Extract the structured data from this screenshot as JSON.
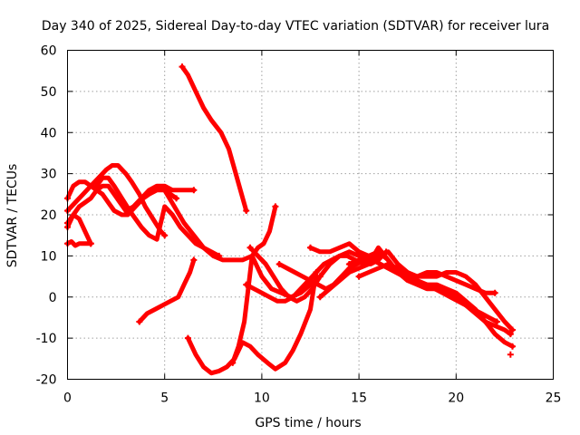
{
  "chart_data": {
    "type": "scatter",
    "title": "Day 340 of 2025, Sidereal Day-to-day VTEC variation (SDTVAR) for receiver lura",
    "xlabel": "GPS time / hours",
    "ylabel": "SDTVAR / TECUs",
    "xlim": [
      0,
      25
    ],
    "ylim": [
      -20,
      60
    ],
    "xticks": [
      0,
      5,
      10,
      15,
      20,
      25
    ],
    "yticks": [
      -20,
      -10,
      0,
      10,
      20,
      30,
      40,
      50,
      60
    ],
    "grid": true,
    "legend": "none",
    "marker": "plus",
    "color": "#ff0000",
    "series": [
      {
        "x": [
          0.0,
          0.3,
          0.6,
          0.9,
          1.2,
          1.5,
          1.8,
          2.1,
          2.4,
          2.8,
          3.1,
          3.5,
          3.9,
          4.2,
          4.6,
          5.0,
          5.3,
          5.6
        ],
        "y": [
          24,
          27,
          28,
          28,
          27,
          26,
          25,
          23,
          21,
          20,
          20,
          22,
          24,
          25,
          26,
          26,
          25,
          24
        ]
      },
      {
        "x": [
          0.0,
          0.4,
          0.8,
          1.2,
          1.6,
          2.0,
          2.3,
          2.6,
          3.0,
          3.3,
          3.7,
          4.0,
          4.4,
          4.8,
          5.0
        ],
        "y": [
          21,
          23,
          25,
          27,
          29,
          31,
          32,
          32,
          30,
          28,
          25,
          22,
          19,
          16,
          15
        ]
      },
      {
        "x": [
          0.0,
          0.2,
          0.4,
          0.6,
          0.8,
          1.0,
          1.2
        ],
        "y": [
          13,
          13.5,
          12.5,
          13,
          13,
          13,
          13
        ]
      },
      {
        "x": [
          0.0,
          0.3,
          0.6,
          0.9,
          1.2,
          1.5,
          1.8,
          2.1,
          2.4,
          2.7,
          3.0,
          3.4,
          3.8,
          4.2,
          4.6,
          5.0,
          5.4,
          5.8,
          6.2,
          6.5
        ],
        "y": [
          17,
          20,
          22,
          23,
          24,
          26,
          27,
          27,
          25,
          23,
          21,
          22,
          24,
          26,
          27,
          27,
          26,
          26,
          26,
          26
        ]
      },
      {
        "x": [
          0.0,
          0.3,
          0.6,
          0.9,
          1.2
        ],
        "y": [
          18,
          20,
          19,
          16,
          13
        ]
      },
      {
        "x": [
          1.5,
          1.8,
          2.1,
          2.4,
          2.8,
          3.2,
          3.5,
          3.8,
          4.2,
          4.6,
          5.0,
          5.4,
          5.8,
          6.2,
          6.6,
          7.0,
          7.4,
          7.8
        ],
        "y": [
          27,
          29,
          29,
          27,
          24,
          21,
          19,
          17,
          15,
          14,
          22,
          20,
          17,
          15,
          13,
          12,
          11,
          10
        ]
      },
      {
        "x": [
          5.0,
          5.5,
          6.0,
          6.5,
          7.0,
          7.5,
          8.0,
          8.5,
          9.0,
          9.5,
          10.0,
          10.5,
          11.0,
          11.5,
          12.0,
          12.5,
          13.0,
          13.5,
          14.0,
          14.5,
          15.0,
          15.5,
          16.0
        ],
        "y": [
          26,
          22,
          18,
          15,
          12,
          10,
          9,
          9,
          9,
          10,
          5,
          2,
          1,
          0,
          1,
          3,
          5,
          8,
          10,
          11,
          10,
          10,
          10
        ]
      },
      {
        "x": [
          5.9,
          6.2,
          6.6,
          7.0,
          7.4,
          7.9,
          8.3,
          8.6,
          8.9,
          9.2
        ],
        "y": [
          56,
          54,
          50,
          46,
          43,
          40,
          36,
          31,
          26,
          21
        ]
      },
      {
        "x": [
          3.7,
          4.1,
          4.5,
          4.9,
          5.3,
          5.7,
          6.0,
          6.3,
          6.5
        ],
        "y": [
          -6,
          -4,
          -3,
          -2,
          -1,
          0,
          3,
          6,
          9
        ]
      },
      {
        "x": [
          6.2,
          6.6,
          7.0,
          7.4,
          7.8,
          8.2,
          8.6,
          9.0,
          9.4,
          9.8,
          10.3,
          10.7,
          11.2,
          11.6,
          12.0,
          12.5,
          12.8
        ],
        "y": [
          -10,
          -14,
          -17,
          -18.5,
          -18,
          -17,
          -15,
          -11,
          -12,
          -14,
          -16,
          -17.5,
          -16,
          -13,
          -9,
          -3,
          6
        ]
      },
      {
        "x": [
          8.5,
          8.8,
          9.1,
          9.3,
          9.5,
          9.8,
          10.1,
          10.4,
          10.7
        ],
        "y": [
          -16,
          -12,
          -6,
          2,
          10,
          12,
          13,
          16,
          22
        ]
      },
      {
        "x": [
          9.2,
          9.6,
          10.0,
          10.4,
          10.8,
          11.2,
          11.6,
          12.0,
          12.4,
          12.8,
          13.2,
          13.6,
          14.0,
          14.4,
          14.8,
          15.2,
          15.6,
          16.0,
          16.4
        ],
        "y": [
          3,
          2,
          1,
          0,
          -1,
          -1,
          0,
          2,
          4,
          6,
          8,
          9,
          10,
          10,
          9,
          8,
          8,
          9,
          11
        ]
      },
      {
        "x": [
          9.4,
          9.8,
          10.2,
          10.6,
          11.0,
          11.4,
          11.8,
          12.2,
          12.6,
          13.0
        ],
        "y": [
          12,
          10,
          8,
          5,
          2,
          0,
          -1,
          0,
          2,
          5
        ]
      },
      {
        "x": [
          10.9,
          11.3,
          11.7,
          12.1,
          12.5,
          12.9,
          13.3,
          13.7,
          14.1,
          14.5,
          14.9,
          15.3,
          15.7,
          16.1,
          16.5,
          16.9,
          17.3,
          17.7,
          18.1,
          18.5,
          18.9,
          19.3,
          19.7,
          20.1,
          20.5,
          20.9,
          21.3,
          21.7,
          22.1
        ],
        "y": [
          8,
          7,
          6,
          5,
          4,
          3,
          2,
          3,
          5,
          7,
          8,
          9,
          9,
          8,
          7,
          6,
          5,
          4,
          3,
          3,
          2,
          1,
          0,
          -1,
          -2,
          -3,
          -4,
          -5,
          -6
        ]
      },
      {
        "x": [
          12.5,
          13.0,
          13.5,
          14.0,
          14.5,
          15.0,
          15.5,
          16.0,
          16.5,
          17.0,
          17.5,
          18.0,
          18.5,
          19.0,
          19.5,
          20.0,
          20.5,
          21.0,
          21.5,
          22.0,
          22.5,
          22.8
        ],
        "y": [
          12,
          11,
          11,
          12,
          13,
          11,
          10,
          11,
          9,
          6,
          4,
          3,
          2,
          2,
          1,
          0,
          -2,
          -4,
          -6,
          -7,
          -8,
          -9
        ]
      },
      {
        "x": [
          13.0,
          13.5,
          14.0,
          14.5,
          15.0,
          15.5,
          16.0,
          16.5,
          17.0,
          17.5,
          18.0,
          18.5,
          19.0,
          19.5,
          20.0,
          20.5,
          21.0,
          21.5,
          22.0
        ],
        "y": [
          0,
          2,
          4,
          6,
          7,
          8,
          12,
          9,
          6,
          5,
          5,
          6,
          6,
          5,
          4,
          3,
          2,
          1,
          1
        ]
      },
      {
        "x": [
          14.5,
          15.0,
          15.5,
          16.0,
          16.5,
          17.0,
          17.5,
          18.0,
          18.5,
          19.0,
          19.5,
          20.0,
          20.5,
          21.0,
          21.5,
          22.0,
          22.5,
          22.9
        ],
        "y": [
          8,
          9,
          9,
          10,
          11,
          8,
          6,
          5,
          5,
          5,
          6,
          6,
          5,
          3,
          0,
          -3,
          -6,
          -8
        ]
      },
      {
        "x": [
          15.0,
          15.5,
          16.0,
          16.5,
          17.0,
          17.5,
          18.0,
          18.5,
          19.0,
          19.5,
          20.0,
          20.5,
          21.0,
          21.5,
          22.0,
          22.5,
          22.9
        ],
        "y": [
          5,
          6,
          7,
          8,
          7,
          5,
          4,
          3,
          3,
          2,
          1,
          -1,
          -3,
          -6,
          -9,
          -11,
          -12
        ]
      }
    ],
    "isolated_points": [
      {
        "x": 22.8,
        "y": -14
      }
    ]
  }
}
